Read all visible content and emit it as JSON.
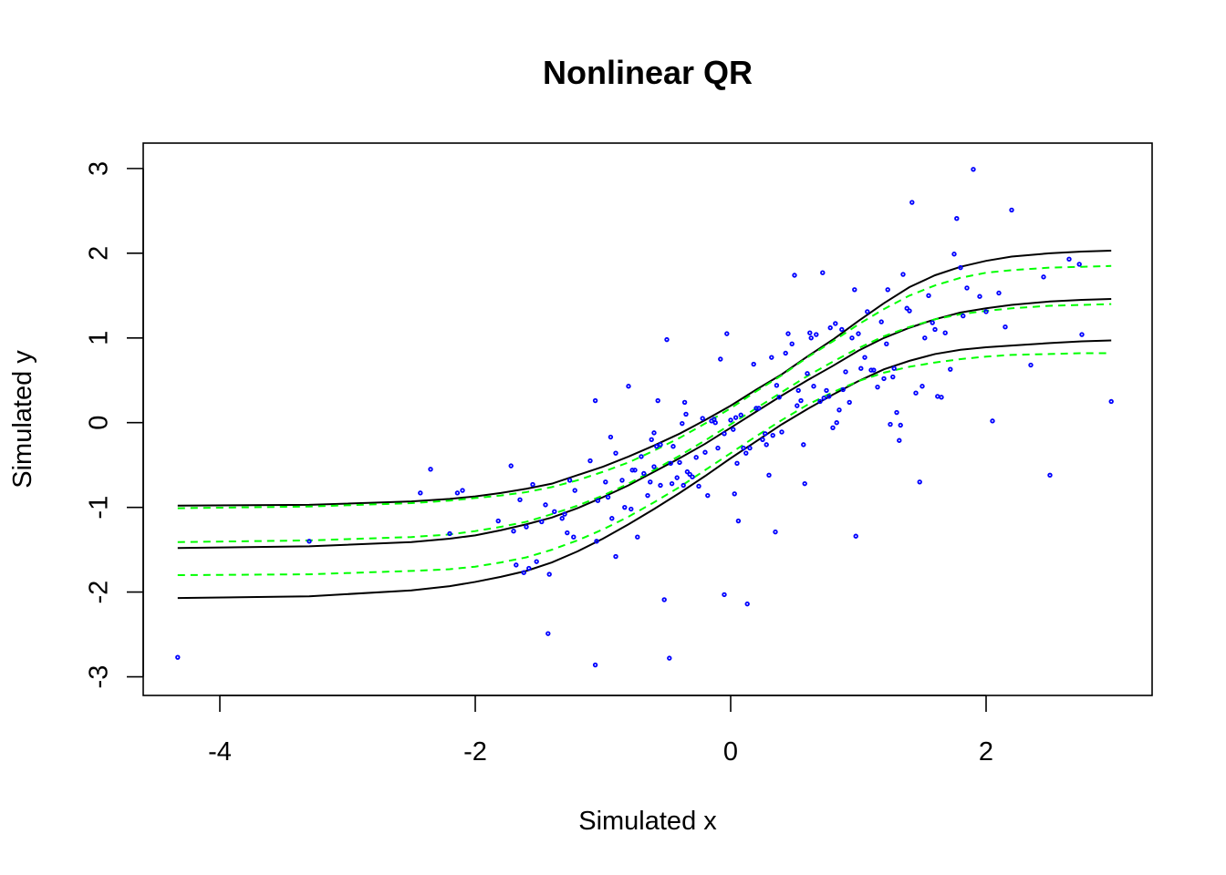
{
  "chart_data": {
    "type": "scatter",
    "title": "Nonlinear QR",
    "xlabel": "Simulated x",
    "ylabel": "Simulated y",
    "xlim": [
      -4.6,
      3.3
    ],
    "ylim": [
      -3.22,
      3.3
    ],
    "x_ticks": [
      -4,
      -2,
      0,
      2
    ],
    "y_ticks": [
      -3,
      -2,
      -1,
      0,
      1,
      2,
      3
    ],
    "grid": false,
    "legend": null,
    "point_color": "#0000ff",
    "points": [
      {
        "x": -4.33,
        "y": -2.77
      },
      {
        "x": -3.3,
        "y": -1.4
      },
      {
        "x": -2.43,
        "y": -0.83
      },
      {
        "x": -2.35,
        "y": -0.55
      },
      {
        "x": -2.2,
        "y": -1.31
      },
      {
        "x": -2.14,
        "y": -0.83
      },
      {
        "x": -2.1,
        "y": -0.8
      },
      {
        "x": -1.82,
        "y": -1.16
      },
      {
        "x": -1.72,
        "y": -0.51
      },
      {
        "x": -1.7,
        "y": -1.28
      },
      {
        "x": -1.68,
        "y": -1.68
      },
      {
        "x": -1.65,
        "y": -0.91
      },
      {
        "x": -1.62,
        "y": -1.77
      },
      {
        "x": -1.58,
        "y": -1.72
      },
      {
        "x": -1.6,
        "y": -1.23
      },
      {
        "x": -1.55,
        "y": -0.73
      },
      {
        "x": -1.52,
        "y": -1.64
      },
      {
        "x": -1.48,
        "y": -1.17
      },
      {
        "x": -1.45,
        "y": -0.97
      },
      {
        "x": -1.43,
        "y": -2.49
      },
      {
        "x": -1.42,
        "y": -1.79
      },
      {
        "x": -1.38,
        "y": -1.05
      },
      {
        "x": -1.32,
        "y": -1.13
      },
      {
        "x": -1.3,
        "y": -1.08
      },
      {
        "x": -1.28,
        "y": -1.3
      },
      {
        "x": -1.26,
        "y": -0.68
      },
      {
        "x": -1.23,
        "y": -1.35
      },
      {
        "x": -1.22,
        "y": -0.8
      },
      {
        "x": -1.1,
        "y": -0.45
      },
      {
        "x": -1.06,
        "y": 0.26
      },
      {
        "x": -1.06,
        "y": -2.86
      },
      {
        "x": -1.05,
        "y": -1.4
      },
      {
        "x": -1.04,
        "y": -0.92
      },
      {
        "x": -0.98,
        "y": -0.7
      },
      {
        "x": -0.96,
        "y": -0.88
      },
      {
        "x": -0.94,
        "y": -0.17
      },
      {
        "x": -0.93,
        "y": -1.13
      },
      {
        "x": -0.9,
        "y": -1.58
      },
      {
        "x": -0.9,
        "y": -0.36
      },
      {
        "x": -0.85,
        "y": -0.68
      },
      {
        "x": -0.83,
        "y": -1.0
      },
      {
        "x": -0.8,
        "y": 0.43
      },
      {
        "x": -0.78,
        "y": -1.02
      },
      {
        "x": -0.77,
        "y": -0.56
      },
      {
        "x": -0.75,
        "y": -0.56
      },
      {
        "x": -0.73,
        "y": -1.35
      },
      {
        "x": -0.7,
        "y": -0.4
      },
      {
        "x": -0.68,
        "y": -0.6
      },
      {
        "x": -0.65,
        "y": -0.86
      },
      {
        "x": -0.63,
        "y": -0.7
      },
      {
        "x": -0.62,
        "y": -0.2
      },
      {
        "x": -0.6,
        "y": -0.12
      },
      {
        "x": -0.6,
        "y": -0.52
      },
      {
        "x": -0.58,
        "y": -0.28
      },
      {
        "x": -0.57,
        "y": 0.26
      },
      {
        "x": -0.55,
        "y": -0.74
      },
      {
        "x": -0.55,
        "y": -0.26
      },
      {
        "x": -0.52,
        "y": -2.09
      },
      {
        "x": -0.5,
        "y": 0.98
      },
      {
        "x": -0.48,
        "y": -2.78
      },
      {
        "x": -0.47,
        "y": -0.48
      },
      {
        "x": -0.46,
        "y": -0.72
      },
      {
        "x": -0.45,
        "y": -0.28
      },
      {
        "x": -0.42,
        "y": -0.65
      },
      {
        "x": -0.4,
        "y": -0.47
      },
      {
        "x": -0.38,
        "y": -0.01
      },
      {
        "x": -0.37,
        "y": -0.74
      },
      {
        "x": -0.36,
        "y": 0.24
      },
      {
        "x": -0.35,
        "y": 0.1
      },
      {
        "x": -0.34,
        "y": -0.58
      },
      {
        "x": -0.32,
        "y": -0.61
      },
      {
        "x": -0.3,
        "y": -0.64
      },
      {
        "x": -0.27,
        "y": -0.41
      },
      {
        "x": -0.25,
        "y": -0.75
      },
      {
        "x": -0.22,
        "y": 0.05
      },
      {
        "x": -0.2,
        "y": -0.35
      },
      {
        "x": -0.18,
        "y": -0.86
      },
      {
        "x": -0.15,
        "y": 0.02
      },
      {
        "x": -0.13,
        "y": 0.04
      },
      {
        "x": -0.12,
        "y": 0.0
      },
      {
        "x": -0.1,
        "y": -0.3
      },
      {
        "x": -0.08,
        "y": 0.75
      },
      {
        "x": -0.05,
        "y": -2.03
      },
      {
        "x": -0.05,
        "y": -0.13
      },
      {
        "x": -0.03,
        "y": 1.05
      },
      {
        "x": 0.0,
        "y": 0.03
      },
      {
        "x": 0.02,
        "y": -0.08
      },
      {
        "x": 0.03,
        "y": -0.84
      },
      {
        "x": 0.04,
        "y": 0.06
      },
      {
        "x": 0.05,
        "y": -0.48
      },
      {
        "x": 0.06,
        "y": -1.16
      },
      {
        "x": 0.08,
        "y": 0.09
      },
      {
        "x": 0.1,
        "y": -0.3
      },
      {
        "x": 0.12,
        "y": -0.36
      },
      {
        "x": 0.13,
        "y": -2.14
      },
      {
        "x": 0.15,
        "y": -0.3
      },
      {
        "x": 0.18,
        "y": 0.69
      },
      {
        "x": 0.2,
        "y": 0.17
      },
      {
        "x": 0.22,
        "y": 0.17
      },
      {
        "x": 0.25,
        "y": -0.2
      },
      {
        "x": 0.27,
        "y": -0.13
      },
      {
        "x": 0.28,
        "y": -0.26
      },
      {
        "x": 0.3,
        "y": -0.62
      },
      {
        "x": 0.32,
        "y": 0.77
      },
      {
        "x": 0.33,
        "y": -0.15
      },
      {
        "x": 0.35,
        "y": -1.29
      },
      {
        "x": 0.36,
        "y": 0.44
      },
      {
        "x": 0.38,
        "y": 0.3
      },
      {
        "x": 0.4,
        "y": -0.11
      },
      {
        "x": 0.43,
        "y": 0.82
      },
      {
        "x": 0.45,
        "y": 1.05
      },
      {
        "x": 0.48,
        "y": 0.93
      },
      {
        "x": 0.5,
        "y": 1.74
      },
      {
        "x": 0.52,
        "y": 0.2
      },
      {
        "x": 0.53,
        "y": 0.38
      },
      {
        "x": 0.55,
        "y": 0.26
      },
      {
        "x": 0.57,
        "y": -0.26
      },
      {
        "x": 0.58,
        "y": -0.72
      },
      {
        "x": 0.6,
        "y": 0.58
      },
      {
        "x": 0.62,
        "y": 1.06
      },
      {
        "x": 0.63,
        "y": 1.0
      },
      {
        "x": 0.65,
        "y": 0.43
      },
      {
        "x": 0.67,
        "y": 1.04
      },
      {
        "x": 0.7,
        "y": 0.25
      },
      {
        "x": 0.72,
        "y": 1.77
      },
      {
        "x": 0.73,
        "y": 0.29
      },
      {
        "x": 0.75,
        "y": 0.38
      },
      {
        "x": 0.77,
        "y": 0.31
      },
      {
        "x": 0.78,
        "y": 1.12
      },
      {
        "x": 0.8,
        "y": -0.06
      },
      {
        "x": 0.82,
        "y": 1.17
      },
      {
        "x": 0.83,
        "y": 0.0
      },
      {
        "x": 0.85,
        "y": 0.15
      },
      {
        "x": 0.87,
        "y": 1.1
      },
      {
        "x": 0.88,
        "y": 0.39
      },
      {
        "x": 0.9,
        "y": 0.6
      },
      {
        "x": 0.93,
        "y": 0.24
      },
      {
        "x": 0.95,
        "y": 1.0
      },
      {
        "x": 0.97,
        "y": 1.57
      },
      {
        "x": 0.98,
        "y": -1.34
      },
      {
        "x": 1.0,
        "y": 1.05
      },
      {
        "x": 1.02,
        "y": 0.64
      },
      {
        "x": 1.05,
        "y": 0.77
      },
      {
        "x": 1.07,
        "y": 1.31
      },
      {
        "x": 1.1,
        "y": 0.62
      },
      {
        "x": 1.12,
        "y": 0.62
      },
      {
        "x": 1.15,
        "y": 0.42
      },
      {
        "x": 1.18,
        "y": 1.19
      },
      {
        "x": 1.2,
        "y": 0.52
      },
      {
        "x": 1.22,
        "y": 0.93
      },
      {
        "x": 1.23,
        "y": 1.57
      },
      {
        "x": 1.25,
        "y": -0.02
      },
      {
        "x": 1.27,
        "y": 0.54
      },
      {
        "x": 1.28,
        "y": 0.64
      },
      {
        "x": 1.3,
        "y": 0.12
      },
      {
        "x": 1.32,
        "y": -0.21
      },
      {
        "x": 1.33,
        "y": -0.03
      },
      {
        "x": 1.35,
        "y": 1.75
      },
      {
        "x": 1.38,
        "y": 1.35
      },
      {
        "x": 1.4,
        "y": 1.32
      },
      {
        "x": 1.42,
        "y": 2.6
      },
      {
        "x": 1.45,
        "y": 0.35
      },
      {
        "x": 1.48,
        "y": -0.7
      },
      {
        "x": 1.5,
        "y": 0.43
      },
      {
        "x": 1.52,
        "y": 1.0
      },
      {
        "x": 1.55,
        "y": 1.5
      },
      {
        "x": 1.58,
        "y": 1.18
      },
      {
        "x": 1.6,
        "y": 1.1
      },
      {
        "x": 1.62,
        "y": 0.31
      },
      {
        "x": 1.65,
        "y": 0.3
      },
      {
        "x": 1.68,
        "y": 1.06
      },
      {
        "x": 1.72,
        "y": 0.63
      },
      {
        "x": 1.75,
        "y": 1.99
      },
      {
        "x": 1.77,
        "y": 2.41
      },
      {
        "x": 1.8,
        "y": 1.83
      },
      {
        "x": 1.82,
        "y": 1.26
      },
      {
        "x": 1.85,
        "y": 1.59
      },
      {
        "x": 1.9,
        "y": 2.99
      },
      {
        "x": 1.95,
        "y": 1.49
      },
      {
        "x": 2.0,
        "y": 1.31
      },
      {
        "x": 2.05,
        "y": 0.02
      },
      {
        "x": 2.1,
        "y": 1.53
      },
      {
        "x": 2.15,
        "y": 1.13
      },
      {
        "x": 2.2,
        "y": 2.51
      },
      {
        "x": 2.35,
        "y": 0.68
      },
      {
        "x": 2.45,
        "y": 1.72
      },
      {
        "x": 2.5,
        "y": -0.62
      },
      {
        "x": 2.65,
        "y": 1.93
      },
      {
        "x": 2.73,
        "y": 1.87
      },
      {
        "x": 2.75,
        "y": 1.04
      },
      {
        "x": 2.98,
        "y": 0.25
      }
    ],
    "series": [
      {
        "color": "#000000",
        "dash": "solid",
        "x": [
          -4.33,
          -3.3,
          -2.5,
          -2.2,
          -2.0,
          -1.8,
          -1.6,
          -1.4,
          -1.2,
          -1.0,
          -0.8,
          -0.6,
          -0.4,
          -0.2,
          0.0,
          0.2,
          0.4,
          0.6,
          0.8,
          1.0,
          1.2,
          1.4,
          1.6,
          1.8,
          2.0,
          2.2,
          2.5,
          2.75,
          2.98
        ],
        "y": [
          -0.98,
          -0.97,
          -0.93,
          -0.9,
          -0.87,
          -0.83,
          -0.78,
          -0.72,
          -0.62,
          -0.52,
          -0.4,
          -0.27,
          -0.13,
          0.03,
          0.2,
          0.39,
          0.57,
          0.78,
          0.98,
          1.2,
          1.41,
          1.6,
          1.74,
          1.84,
          1.91,
          1.96,
          2.0,
          2.02,
          2.03
        ]
      },
      {
        "color": "#000000",
        "dash": "solid",
        "x": [
          -4.33,
          -3.3,
          -2.5,
          -2.2,
          -2.0,
          -1.8,
          -1.6,
          -1.4,
          -1.2,
          -1.0,
          -0.8,
          -0.6,
          -0.4,
          -0.2,
          0.0,
          0.2,
          0.4,
          0.6,
          0.8,
          1.0,
          1.2,
          1.4,
          1.6,
          1.8,
          2.0,
          2.2,
          2.5,
          2.75,
          2.98
        ],
        "y": [
          -1.48,
          -1.46,
          -1.41,
          -1.37,
          -1.33,
          -1.27,
          -1.2,
          -1.12,
          -1.01,
          -0.88,
          -0.74,
          -0.58,
          -0.42,
          -0.25,
          -0.06,
          0.13,
          0.32,
          0.5,
          0.67,
          0.85,
          1.0,
          1.12,
          1.22,
          1.3,
          1.35,
          1.39,
          1.43,
          1.45,
          1.46
        ]
      },
      {
        "color": "#000000",
        "dash": "solid",
        "x": [
          -4.33,
          -3.3,
          -2.5,
          -2.2,
          -2.0,
          -1.8,
          -1.6,
          -1.4,
          -1.2,
          -1.0,
          -0.8,
          -0.6,
          -0.4,
          -0.2,
          0.0,
          0.2,
          0.4,
          0.6,
          0.8,
          1.0,
          1.2,
          1.4,
          1.6,
          1.8,
          2.0,
          2.2,
          2.5,
          2.75,
          2.98
        ],
        "y": [
          -2.07,
          -2.05,
          -1.98,
          -1.93,
          -1.88,
          -1.82,
          -1.75,
          -1.65,
          -1.52,
          -1.37,
          -1.2,
          -1.02,
          -0.83,
          -0.63,
          -0.42,
          -0.22,
          -0.02,
          0.16,
          0.33,
          0.49,
          0.63,
          0.73,
          0.81,
          0.86,
          0.89,
          0.91,
          0.94,
          0.96,
          0.97
        ]
      },
      {
        "color": "#00ff00",
        "dash": "dashed",
        "x": [
          -4.33,
          -3.3,
          -2.5,
          -2.2,
          -2.0,
          -1.8,
          -1.6,
          -1.4,
          -1.2,
          -1.0,
          -0.8,
          -0.6,
          -0.4,
          -0.2,
          0.0,
          0.2,
          0.4,
          0.6,
          0.8,
          1.0,
          1.2,
          1.4,
          1.6,
          1.8,
          2.0,
          2.2,
          2.5,
          2.75,
          2.98
        ],
        "y": [
          -1.01,
          -0.99,
          -0.95,
          -0.92,
          -0.89,
          -0.86,
          -0.82,
          -0.76,
          -0.68,
          -0.58,
          -0.47,
          -0.33,
          -0.18,
          -0.01,
          0.17,
          0.37,
          0.56,
          0.77,
          0.96,
          1.16,
          1.34,
          1.5,
          1.62,
          1.71,
          1.77,
          1.8,
          1.83,
          1.84,
          1.85
        ]
      },
      {
        "color": "#00ff00",
        "dash": "dashed",
        "x": [
          -4.33,
          -3.3,
          -2.5,
          -2.2,
          -2.0,
          -1.8,
          -1.6,
          -1.4,
          -1.2,
          -1.0,
          -0.8,
          -0.6,
          -0.4,
          -0.2,
          0.0,
          0.2,
          0.4,
          0.6,
          0.8,
          1.0,
          1.2,
          1.4,
          1.6,
          1.8,
          2.0,
          2.2,
          2.5,
          2.75,
          2.98
        ],
        "y": [
          -1.41,
          -1.39,
          -1.35,
          -1.32,
          -1.28,
          -1.23,
          -1.17,
          -1.08,
          -0.98,
          -0.86,
          -0.72,
          -0.56,
          -0.39,
          -0.21,
          -0.02,
          0.17,
          0.36,
          0.55,
          0.72,
          0.88,
          1.02,
          1.13,
          1.22,
          1.28,
          1.32,
          1.35,
          1.38,
          1.39,
          1.4
        ]
      },
      {
        "color": "#00ff00",
        "dash": "dashed",
        "x": [
          -4.33,
          -3.3,
          -2.5,
          -2.2,
          -2.0,
          -1.8,
          -1.6,
          -1.4,
          -1.2,
          -1.0,
          -0.8,
          -0.6,
          -0.4,
          -0.2,
          0.0,
          0.2,
          0.4,
          0.6,
          0.8,
          1.0,
          1.2,
          1.4,
          1.6,
          1.8,
          2.0,
          2.2,
          2.5,
          2.75,
          2.98
        ],
        "y": [
          -1.8,
          -1.79,
          -1.75,
          -1.73,
          -1.7,
          -1.65,
          -1.59,
          -1.5,
          -1.39,
          -1.26,
          -1.11,
          -0.94,
          -0.76,
          -0.56,
          -0.36,
          -0.16,
          0.03,
          0.21,
          0.36,
          0.49,
          0.59,
          0.66,
          0.71,
          0.75,
          0.78,
          0.8,
          0.81,
          0.82,
          0.82
        ]
      }
    ]
  }
}
